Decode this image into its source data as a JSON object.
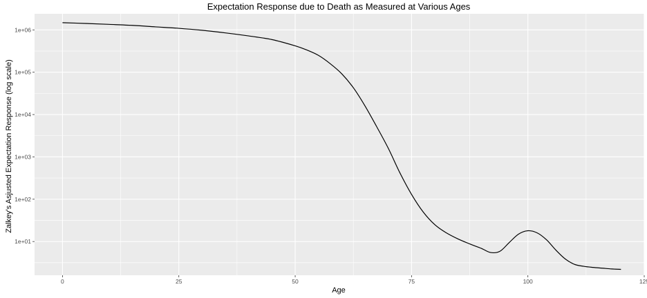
{
  "chart_data": {
    "type": "line",
    "title": "Expectation Response due to Death as Measured at Various Ages",
    "xlabel": "Age",
    "ylabel": "Zalkey's Asjusted Expectation Response (log scale)",
    "y_scale": "log10",
    "xlim": [
      -6,
      125
    ],
    "ylim": [
      1.6,
      2400000
    ],
    "x_ticks": [
      {
        "value": 0,
        "label": "0"
      },
      {
        "value": 25,
        "label": "25"
      },
      {
        "value": 50,
        "label": "50"
      },
      {
        "value": 75,
        "label": "75"
      },
      {
        "value": 100,
        "label": "100"
      },
      {
        "value": 125,
        "label": "125"
      }
    ],
    "y_ticks": [
      {
        "value": 10,
        "label": "1e+01"
      },
      {
        "value": 100,
        "label": "1e+02"
      },
      {
        "value": 1000,
        "label": "1e+03"
      },
      {
        "value": 10000,
        "label": "1e+04"
      },
      {
        "value": 100000,
        "label": "1e+05"
      },
      {
        "value": 1000000,
        "label": "1e+06"
      }
    ],
    "grid": true,
    "background": "#ebebeb",
    "grid_color": "#ffffff",
    "line_color": "#000000",
    "series": [
      {
        "x": [
          0,
          5,
          10,
          15,
          20,
          25,
          30,
          35,
          40,
          45,
          50,
          52.5,
          55,
          57.5,
          60,
          62.5,
          65,
          67.5,
          70,
          72.5,
          75,
          77.5,
          80,
          82.5,
          85,
          87.5,
          90,
          92,
          94,
          96,
          98,
          100,
          102,
          104,
          106,
          108,
          110,
          112,
          114,
          116,
          118,
          120
        ],
        "y": [
          1480000,
          1420000,
          1350000,
          1280000,
          1180000,
          1090000,
          980000,
          850000,
          720000,
          590000,
          420000,
          335000,
          250000,
          160000,
          92000,
          43000,
          16000,
          5200,
          1600,
          420,
          130,
          50,
          25,
          16,
          11.5,
          8.8,
          6.9,
          5.5,
          5.9,
          9.5,
          15,
          18,
          16,
          11,
          6.3,
          3.9,
          2.9,
          2.6,
          2.45,
          2.35,
          2.25,
          2.2
        ]
      }
    ]
  }
}
